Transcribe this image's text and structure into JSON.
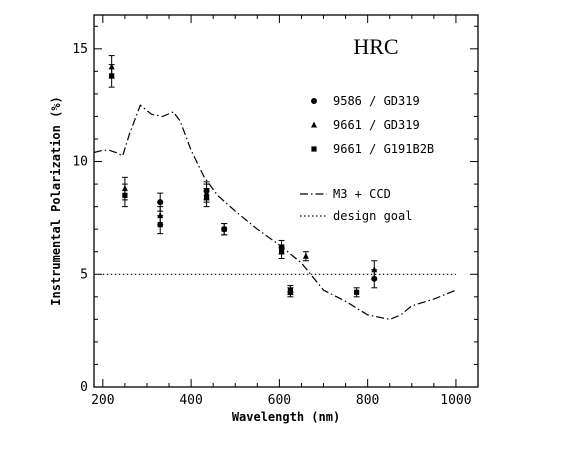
{
  "chart_data": {
    "type": "scatter",
    "title": "HRC",
    "xlabel": "Wavelength (nm)",
    "ylabel": "Instrumental Polarization (%)",
    "xlim": [
      180,
      1050
    ],
    "ylim": [
      0,
      16.5
    ],
    "xticks": [
      200,
      400,
      600,
      800,
      1000
    ],
    "yticks": [
      0,
      5,
      10,
      15
    ],
    "grid": false,
    "legend_position": "right",
    "series": [
      {
        "name": "9586 / GD319",
        "marker": "circle",
        "points": [
          {
            "x": 330,
            "y": 8.2,
            "err": 0.4
          },
          {
            "x": 435,
            "y": 8.7,
            "err": 0.4
          },
          {
            "x": 475,
            "y": 7.0,
            "err": 0.25
          },
          {
            "x": 605,
            "y": 6.2,
            "err": 0.3
          },
          {
            "x": 625,
            "y": 4.2,
            "err": 0.2
          },
          {
            "x": 815,
            "y": 4.8,
            "err": 0.4
          }
        ]
      },
      {
        "name": "9661 / GD319",
        "marker": "triangle",
        "points": [
          {
            "x": 220,
            "y": 14.2,
            "err": 0.5
          },
          {
            "x": 250,
            "y": 8.8,
            "err": 0.5
          },
          {
            "x": 330,
            "y": 7.6,
            "err": 0.4
          },
          {
            "x": 435,
            "y": 8.6,
            "err": 0.4
          },
          {
            "x": 660,
            "y": 5.8,
            "err": 0.2
          },
          {
            "x": 815,
            "y": 5.2,
            "err": 0.4
          }
        ]
      },
      {
        "name": "9661 / G191B2B",
        "marker": "square",
        "points": [
          {
            "x": 220,
            "y": 13.8,
            "err": 0.5
          },
          {
            "x": 250,
            "y": 8.5,
            "err": 0.5
          },
          {
            "x": 330,
            "y": 7.2,
            "err": 0.4
          },
          {
            "x": 435,
            "y": 8.4,
            "err": 0.4
          },
          {
            "x": 475,
            "y": 7.0,
            "err": 0.25
          },
          {
            "x": 605,
            "y": 6.0,
            "err": 0.3
          },
          {
            "x": 625,
            "y": 4.3,
            "err": 0.2
          },
          {
            "x": 775,
            "y": 4.2,
            "err": 0.2
          }
        ]
      }
    ],
    "lines": [
      {
        "name": "M3 + CCD",
        "style": "dash-dot",
        "points": [
          [
            180,
            10.4
          ],
          [
            200,
            10.5
          ],
          [
            215,
            10.5
          ],
          [
            230,
            10.4
          ],
          [
            245,
            10.25
          ],
          [
            260,
            11.2
          ],
          [
            285,
            12.5
          ],
          [
            310,
            12.1
          ],
          [
            335,
            12.0
          ],
          [
            360,
            12.2
          ],
          [
            375,
            11.8
          ],
          [
            400,
            10.5
          ],
          [
            430,
            9.3
          ],
          [
            460,
            8.5
          ],
          [
            500,
            7.8
          ],
          [
            550,
            7.0
          ],
          [
            600,
            6.3
          ],
          [
            650,
            5.5
          ],
          [
            700,
            4.3
          ],
          [
            750,
            3.8
          ],
          [
            800,
            3.2
          ],
          [
            850,
            3.0
          ],
          [
            875,
            3.2
          ],
          [
            900,
            3.6
          ],
          [
            950,
            3.9
          ],
          [
            1000,
            4.3
          ]
        ]
      },
      {
        "name": "design goal",
        "style": "dotted",
        "points": [
          [
            200,
            5.0
          ],
          [
            1000,
            5.0
          ]
        ]
      }
    ]
  }
}
